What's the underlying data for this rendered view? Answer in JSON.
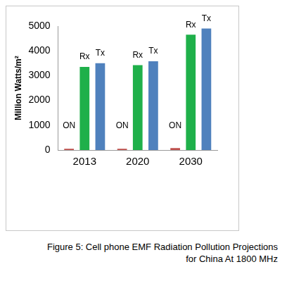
{
  "chart_data": {
    "type": "bar",
    "title": "Figure 5: Cell phone EMF Radiation Pollution Projections for China At 1800 MHz",
    "ylabel": "Million Watts/m²",
    "categories": [
      "2013",
      "2020",
      "2030"
    ],
    "series": [
      {
        "name": "ON",
        "color": "#c0504d",
        "values": [
          50,
          50,
          80
        ]
      },
      {
        "name": "Rx",
        "color": "#1fb04a",
        "values": [
          3350,
          3420,
          4650
        ]
      },
      {
        "name": "Tx",
        "color": "#4f81bd",
        "values": [
          3500,
          3580,
          4900
        ]
      }
    ],
    "ylim": [
      0,
      5000
    ],
    "yticks": [
      0,
      1000,
      2000,
      3000,
      4000,
      5000
    ],
    "grid": false
  }
}
